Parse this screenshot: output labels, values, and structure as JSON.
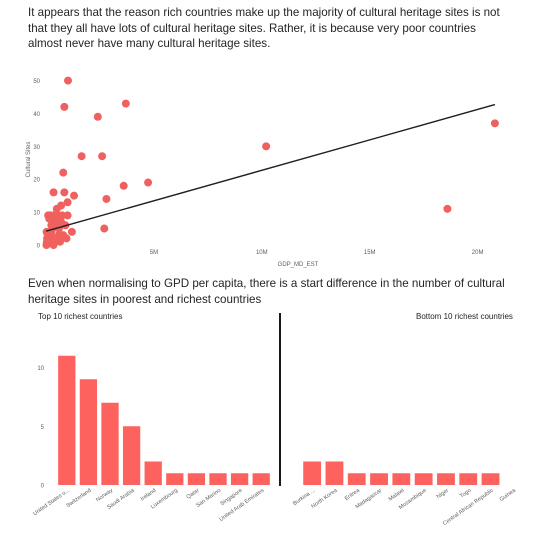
{
  "texts": {
    "intro": "It appears that the reason rich countries make up the majority of cultural heritage sites is not that they all have lots of cultural heritage sites. Rather, it is because very poor countries almost never have many cultural heritage sites.",
    "section2": "Even when normalising to GPD per capita, there is a start difference in the number of cultural heritage sites in poorest and richest countries"
  },
  "colors": {
    "point": "#f0605e",
    "bar": "#fd625e",
    "trend": "#1f1f1f",
    "axis_text": "#605e5c"
  },
  "chart_data": [
    {
      "type": "scatter",
      "xlabel": "GDP_MD_EST",
      "ylabel": "Cultural Sites",
      "xlim": [
        0,
        21500000
      ],
      "ylim": [
        0,
        52
      ],
      "xticks": [
        {
          "v": 5000000,
          "label": "5M"
        },
        {
          "v": 10000000,
          "label": "10M"
        },
        {
          "v": 15000000,
          "label": "15M"
        },
        {
          "v": 20000000,
          "label": "20M"
        }
      ],
      "yticks": [
        0,
        10,
        20,
        30,
        40,
        50
      ],
      "trend": {
        "x0": 0,
        "y0": 4.2,
        "x1": 20800000,
        "y1": 42.7
      },
      "points": [
        [
          1020000,
          50
        ],
        [
          3700000,
          43
        ],
        [
          850000,
          42
        ],
        [
          2400000,
          39
        ],
        [
          1650000,
          27
        ],
        [
          2600000,
          27
        ],
        [
          20800000,
          37
        ],
        [
          10200000,
          30
        ],
        [
          3600000,
          18
        ],
        [
          4730000,
          19
        ],
        [
          2800000,
          14
        ],
        [
          850000,
          16
        ],
        [
          1300000,
          15
        ],
        [
          350000,
          16
        ],
        [
          800000,
          22
        ],
        [
          2700000,
          5
        ],
        [
          1000000,
          13
        ],
        [
          18600000,
          11
        ],
        [
          750000,
          9
        ],
        [
          1000000,
          9
        ],
        [
          550000,
          9
        ],
        [
          350000,
          9
        ],
        [
          200000,
          9
        ],
        [
          100000,
          9
        ],
        [
          400000,
          7
        ],
        [
          700000,
          7
        ],
        [
          900000,
          6
        ],
        [
          1200000,
          4
        ],
        [
          300000,
          5
        ],
        [
          600000,
          3
        ],
        [
          150000,
          8
        ],
        [
          450000,
          6
        ],
        [
          800000,
          3
        ],
        [
          250000,
          4
        ],
        [
          50000,
          2
        ],
        [
          400000,
          2
        ],
        [
          650000,
          1
        ],
        [
          150000,
          1
        ],
        [
          350000,
          0
        ],
        [
          80000,
          3
        ],
        [
          600000,
          5
        ],
        [
          950000,
          2
        ],
        [
          500000,
          11
        ],
        [
          700000,
          12
        ],
        [
          40000,
          1
        ],
        [
          20000,
          0
        ],
        [
          250000,
          6
        ],
        [
          30000,
          4
        ]
      ]
    },
    {
      "type": "bar",
      "title": "Top 10 richest countries",
      "categories": [
        "United States o...",
        "Switzerland",
        "Norway",
        "Saudi Arabia",
        "Ireland",
        "Luxembourg",
        "Qatar",
        "San Marino",
        "Singapore",
        "United Arab Emirates"
      ],
      "values": [
        11,
        9,
        7,
        5,
        2,
        1,
        1,
        1,
        1,
        1
      ],
      "ylim": [
        0,
        12
      ],
      "yticks": [
        0,
        5,
        10
      ]
    },
    {
      "type": "bar",
      "title": "Bottom 10 richest countries",
      "categories": [
        "Burkina ...",
        "North Korea",
        "Eritrea",
        "Madagascar",
        "Malawi",
        "Mozambique",
        "Niger",
        "Togo",
        "Central African Republic",
        "Guinea"
      ],
      "values": [
        2,
        2,
        1,
        1,
        1,
        1,
        1,
        1,
        1,
        0
      ],
      "ylim": [
        0,
        12
      ]
    }
  ]
}
